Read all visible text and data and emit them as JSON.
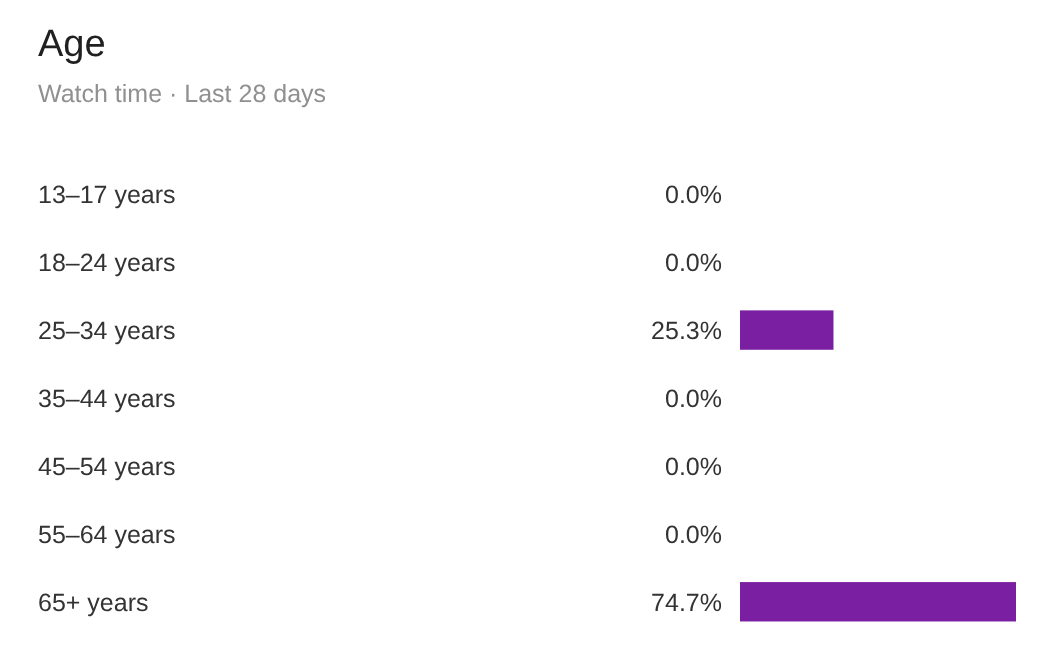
{
  "chart_data": {
    "type": "bar",
    "orientation": "horizontal",
    "title": "Age",
    "subtitle": "Watch time · Last 28 days",
    "categories": [
      "13–17 years",
      "18–24 years",
      "25–34 years",
      "35–44 years",
      "45–54 years",
      "55–64 years",
      "65+ years"
    ],
    "values": [
      0.0,
      0.0,
      25.3,
      0.0,
      0.0,
      0.0,
      74.7
    ],
    "value_labels": [
      "0.0%",
      "0.0%",
      "25.3%",
      "0.0%",
      "0.0%",
      "0.0%",
      "74.7%"
    ],
    "color": "#7b1fa2"
  }
}
